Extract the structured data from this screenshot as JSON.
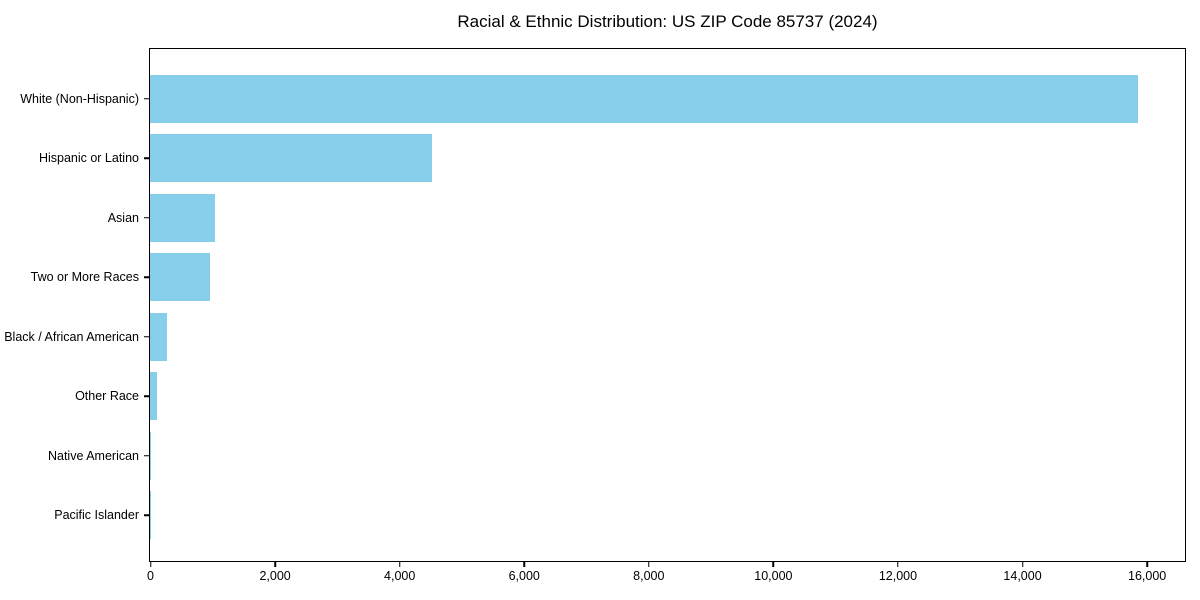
{
  "colors": {
    "bar": "#87CEEB",
    "axis": "#000000",
    "background": "#FFFFFF",
    "text": "#000000"
  },
  "chart_data": {
    "type": "bar",
    "orientation": "horizontal",
    "title": "Racial & Ethnic Distribution: US ZIP Code 85737 (2024)",
    "categories": [
      "White (Non-Hispanic)",
      "Hispanic or Latino",
      "Asian",
      "Two or More Races",
      "Black / African American",
      "Other Race",
      "Native American",
      "Pacific Islander"
    ],
    "values": [
      15850,
      4520,
      1040,
      960,
      270,
      110,
      20,
      3
    ],
    "x_ticks": [
      0,
      2000,
      4000,
      6000,
      8000,
      10000,
      12000,
      14000,
      16000
    ],
    "x_tick_labels": [
      "0",
      "2,000",
      "4,000",
      "6,000",
      "8,000",
      "10,000",
      "12,000",
      "14,000",
      "16,000"
    ],
    "xlim": [
      0,
      16600
    ],
    "xlabel": "",
    "ylabel": "",
    "grid": false
  }
}
